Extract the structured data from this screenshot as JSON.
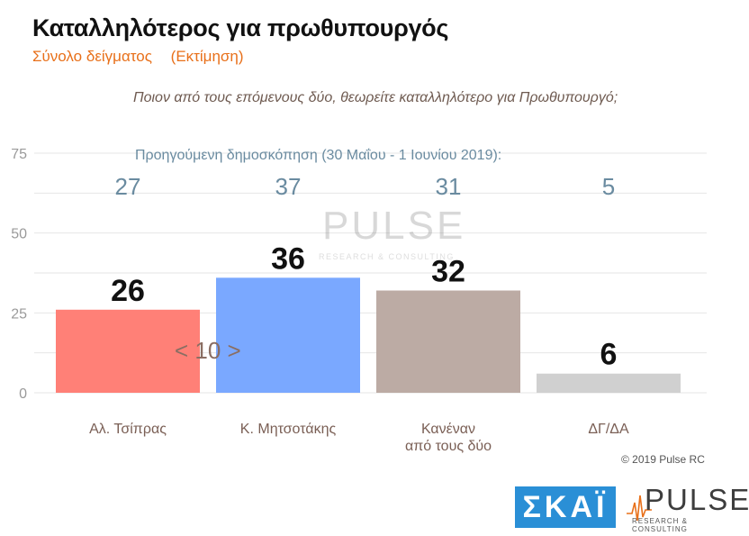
{
  "header": {
    "title": "Καταλληλότερος για πρωθυπουργός",
    "subtitle_left": "Σύνολο δείγματος",
    "subtitle_right": "(Εκτίμηση)"
  },
  "question": "Ποιον από τους επόμενους δύο, θεωρείτε καταλληλότερο για Πρωθυπουργό;",
  "previous_label": "Προηγούμενη δημοσκόπηση (30 Μαΐου - 1 Ιουνίου 2019):",
  "difference_label": "< 10 >",
  "copyright": "© 2019 Pulse RC",
  "logos": {
    "skai": "ΣΚΑΪ",
    "pulse": "PULSE",
    "pulse_tagline": "RESEARCH & CONSULTING"
  },
  "watermark": {
    "text": "PULSE",
    "tagline": "RESEARCH & CONSULTING"
  },
  "colors": {
    "title": "#111111",
    "subtitle": "#e8701a",
    "grid": "#e6e6e6",
    "axis_text": "#9a9a9a",
    "previous_values": "#6a8ba0",
    "skai_blue": "#2a8fd6"
  },
  "chart_data": {
    "type": "bar",
    "categories": [
      [
        "Αλ. Τσίπρας"
      ],
      [
        "Κ. Μητσοτάκης"
      ],
      [
        "Κανέναν",
        "από τους δύο"
      ],
      [
        "ΔΓ/ΔΑ"
      ]
    ],
    "values": [
      26,
      36,
      32,
      6
    ],
    "previous_values": [
      27,
      37,
      31,
      5
    ],
    "bar_colors": [
      "#ff8077",
      "#7aa8ff",
      "#bcaba4",
      "#d0d0d0"
    ],
    "yticks": [
      0,
      25,
      50,
      75
    ],
    "ylim": [
      0,
      75
    ],
    "grid": true
  }
}
